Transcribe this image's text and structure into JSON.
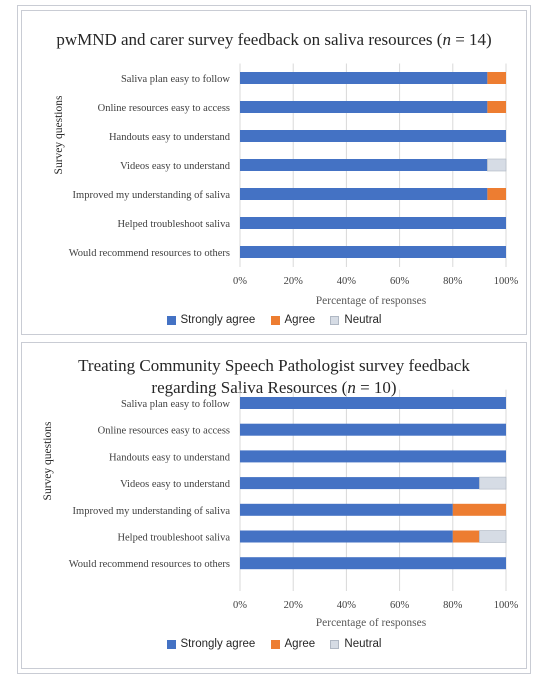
{
  "colors": {
    "strongly_agree": "#4472c4",
    "agree": "#ed7d31",
    "neutral": "#d6dce5",
    "axis_text": "#404040",
    "grid": "#d9d9d9"
  },
  "chart_data": [
    {
      "type": "bar",
      "orientation": "horizontal",
      "stacked": true,
      "title_text": "pwMND and carer survey feedback on saliva resources (",
      "title_n": "n",
      "title_rest": " = 14)",
      "xlabel": "Percentage of responses",
      "ylabel": "Survey questions",
      "xlim": [
        0,
        100
      ],
      "xticks": [
        "0%",
        "20%",
        "40%",
        "60%",
        "80%",
        "100%"
      ],
      "grid": true,
      "legend_position": "bottom",
      "categories": [
        "Saliva plan easy to follow",
        "Online resources easy to access",
        "Handouts  easy to understand",
        "Videos easy to understand",
        "Improved my understanding of saliva",
        "Helped troubleshoot saliva",
        "Would recommend resources to others"
      ],
      "series": [
        {
          "name": "Strongly agree",
          "values": [
            93,
            93,
            100,
            93,
            93,
            100,
            100
          ]
        },
        {
          "name": "Agree",
          "values": [
            7,
            7,
            0,
            0,
            7,
            0,
            0
          ]
        },
        {
          "name": "Neutral",
          "values": [
            0,
            0,
            0,
            7,
            0,
            0,
            0
          ]
        }
      ]
    },
    {
      "type": "bar",
      "orientation": "horizontal",
      "stacked": true,
      "title_line1": "Treating Community Speech Pathologist survey feedback",
      "title_text": "regarding Saliva Resources (",
      "title_n": "n",
      "title_rest": " = 10)",
      "xlabel": "Percentage of responses",
      "ylabel": "Survey questions",
      "xlim": [
        0,
        100
      ],
      "xticks": [
        "0%",
        "20%",
        "40%",
        "60%",
        "80%",
        "100%"
      ],
      "grid": true,
      "legend_position": "bottom",
      "categories": [
        "Saliva plan easy to follow",
        "Online resources easy to access",
        "Handouts  easy to understand",
        "Videos easy to understand",
        "Improved my understanding of saliva",
        "Helped troubleshoot saliva",
        "Would recommend resources to others"
      ],
      "series": [
        {
          "name": "Strongly agree",
          "values": [
            100,
            100,
            100,
            90,
            80,
            80,
            100
          ]
        },
        {
          "name": "Agree",
          "values": [
            0,
            0,
            0,
            0,
            20,
            10,
            0
          ]
        },
        {
          "name": "Neutral",
          "values": [
            0,
            0,
            0,
            10,
            0,
            10,
            0
          ]
        }
      ]
    }
  ]
}
